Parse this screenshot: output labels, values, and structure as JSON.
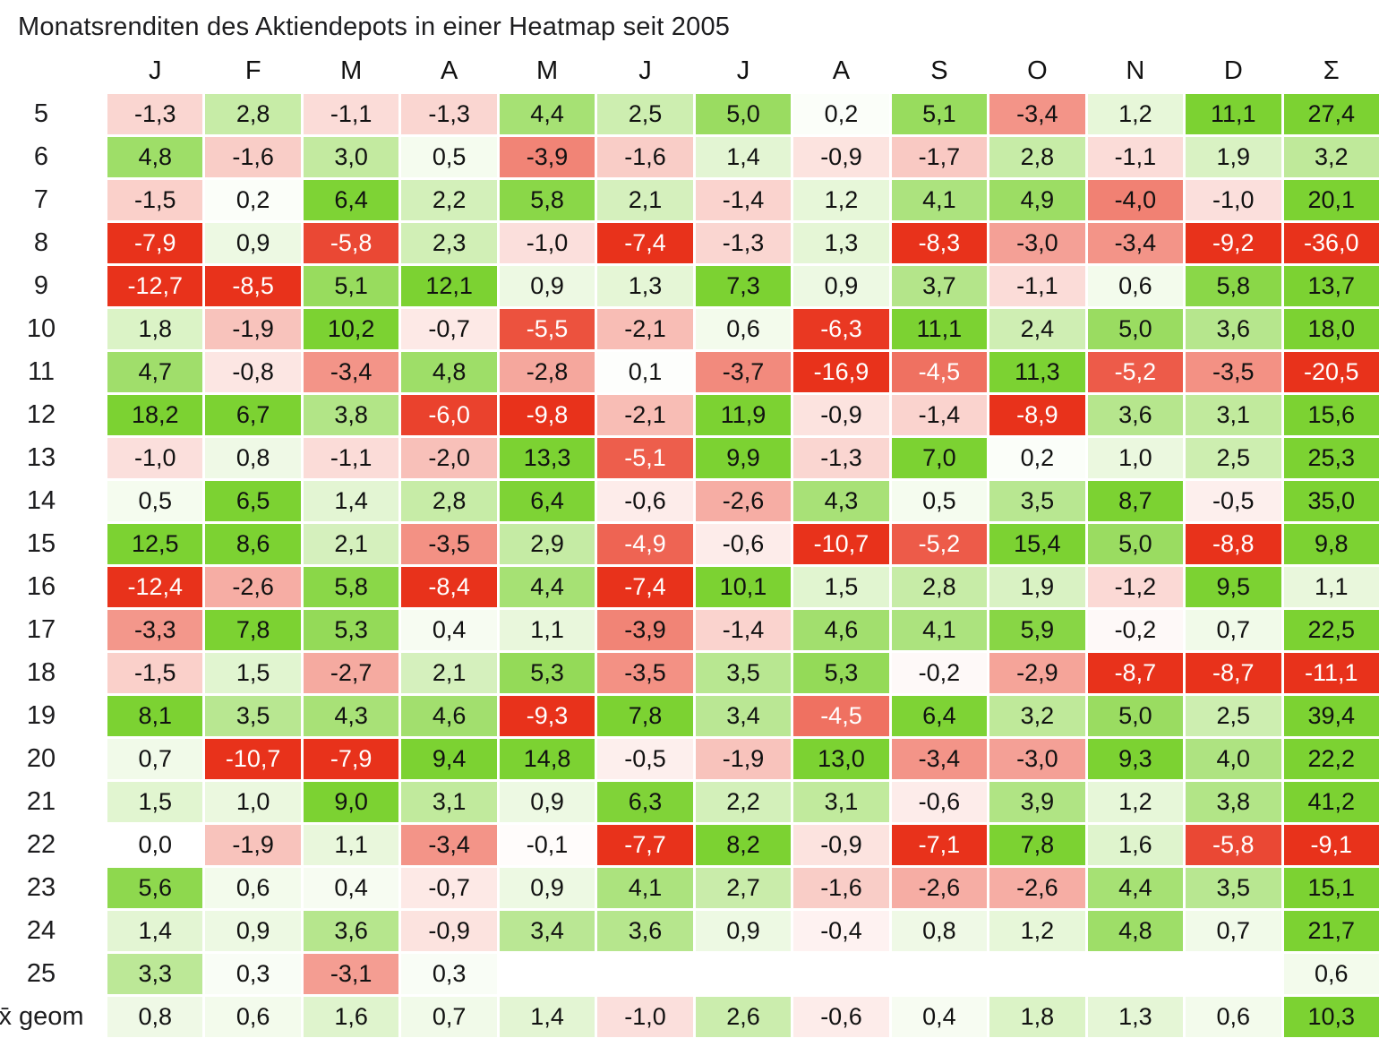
{
  "title": "Monatsrenditen des Aktiendepots in einer Heatmap seit 2005",
  "chart_data": {
    "type": "heatmap",
    "title": "Monatsrenditen des Aktiendepots in einer Heatmap seit 2005",
    "columns": [
      "J",
      "F",
      "M",
      "A",
      "M",
      "J",
      "J",
      "A",
      "S",
      "O",
      "N",
      "D",
      "Σ"
    ],
    "row_labels": [
      "5",
      "6",
      "7",
      "8",
      "9",
      "10",
      "11",
      "12",
      "13",
      "14",
      "15",
      "16",
      "17",
      "18",
      "19",
      "20",
      "21",
      "22",
      "23",
      "24",
      "25",
      "x̄ geom"
    ],
    "values": [
      [
        -1.3,
        2.8,
        -1.1,
        -1.3,
        4.4,
        2.5,
        5.0,
        0.2,
        5.1,
        -3.4,
        1.2,
        11.1,
        27.4
      ],
      [
        4.8,
        -1.6,
        3.0,
        0.5,
        -3.9,
        -1.6,
        1.4,
        -0.9,
        -1.7,
        2.8,
        -1.1,
        1.9,
        3.2
      ],
      [
        -1.5,
        0.2,
        6.4,
        2.2,
        5.8,
        2.1,
        -1.4,
        1.2,
        4.1,
        4.9,
        -4.0,
        -1.0,
        20.1
      ],
      [
        -7.9,
        0.9,
        -5.8,
        2.3,
        -1.0,
        -7.4,
        -1.3,
        1.3,
        -8.3,
        -3.0,
        -3.4,
        -9.2,
        -36.0
      ],
      [
        -12.7,
        -8.5,
        5.1,
        12.1,
        0.9,
        1.3,
        7.3,
        0.9,
        3.7,
        -1.1,
        0.6,
        5.8,
        13.7
      ],
      [
        1.8,
        -1.9,
        10.2,
        -0.7,
        -5.5,
        -2.1,
        0.6,
        -6.3,
        11.1,
        2.4,
        5.0,
        3.6,
        18.0
      ],
      [
        4.7,
        -0.8,
        -3.4,
        4.8,
        -2.8,
        0.1,
        -3.7,
        -16.9,
        -4.5,
        11.3,
        -5.2,
        -3.5,
        -20.5
      ],
      [
        18.2,
        6.7,
        3.8,
        -6.0,
        -9.8,
        -2.1,
        11.9,
        -0.9,
        -1.4,
        -8.9,
        3.6,
        3.1,
        15.6
      ],
      [
        -1.0,
        0.8,
        -1.1,
        -2.0,
        13.3,
        -5.1,
        9.9,
        -1.3,
        7.0,
        0.2,
        1.0,
        2.5,
        25.3
      ],
      [
        0.5,
        6.5,
        1.4,
        2.8,
        6.4,
        -0.6,
        -2.6,
        4.3,
        0.5,
        3.5,
        8.7,
        -0.5,
        35.0
      ],
      [
        12.5,
        8.6,
        2.1,
        -3.5,
        2.9,
        -4.9,
        -0.6,
        -10.7,
        -5.2,
        15.4,
        5.0,
        -8.8,
        9.8
      ],
      [
        -12.4,
        -2.6,
        5.8,
        -8.4,
        4.4,
        -7.4,
        10.1,
        1.5,
        2.8,
        1.9,
        -1.2,
        9.5,
        1.1
      ],
      [
        -3.3,
        7.8,
        5.3,
        0.4,
        1.1,
        -3.9,
        -1.4,
        4.6,
        4.1,
        5.9,
        -0.2,
        0.7,
        22.5
      ],
      [
        -1.5,
        1.5,
        -2.7,
        2.1,
        5.3,
        -3.5,
        3.5,
        5.3,
        -0.2,
        -2.9,
        -8.7,
        -8.7,
        -11.1
      ],
      [
        8.1,
        3.5,
        4.3,
        4.6,
        -9.3,
        7.8,
        3.4,
        -4.5,
        6.4,
        3.2,
        5.0,
        2.5,
        39.4
      ],
      [
        0.7,
        -10.7,
        -7.9,
        9.4,
        14.8,
        -0.5,
        -1.9,
        13.0,
        -3.4,
        -3.0,
        9.3,
        4.0,
        22.2
      ],
      [
        1.5,
        1.0,
        9.0,
        3.1,
        0.9,
        6.3,
        2.2,
        3.1,
        -0.6,
        3.9,
        1.2,
        3.8,
        41.2
      ],
      [
        0.0,
        -1.9,
        1.1,
        -3.4,
        -0.1,
        -7.7,
        8.2,
        -0.9,
        -7.1,
        7.8,
        1.6,
        -5.8,
        -9.1
      ],
      [
        5.6,
        0.6,
        0.4,
        -0.7,
        0.9,
        4.1,
        2.7,
        -1.6,
        -2.6,
        -2.6,
        4.4,
        3.5,
        15.1
      ],
      [
        1.4,
        0.9,
        3.6,
        -0.9,
        3.4,
        3.6,
        0.9,
        -0.4,
        0.8,
        1.2,
        4.8,
        0.7,
        21.7
      ],
      [
        3.3,
        0.3,
        -3.1,
        0.3,
        null,
        null,
        null,
        null,
        null,
        null,
        null,
        null,
        0.6
      ],
      [
        0.8,
        0.6,
        1.6,
        0.7,
        1.4,
        -1.0,
        2.6,
        -0.6,
        0.4,
        1.8,
        1.3,
        0.6,
        10.3
      ]
    ],
    "value_format": "one decimal, German comma separator",
    "colorscale": {
      "negative_full": "#E8321B",
      "neutral": "#FFFFFF",
      "positive_full": "#7CD232",
      "cap_abs": 6.5,
      "white_text_at_or_below": -4.5,
      "cell_text_color": "#111111"
    }
  }
}
